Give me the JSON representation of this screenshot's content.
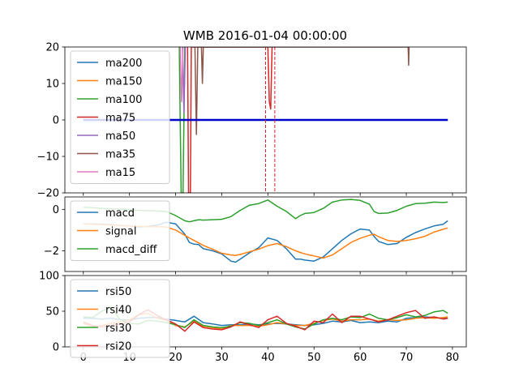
{
  "title": "WMB 2016-01-04 00:00:00",
  "chart_data": [
    {
      "type": "line",
      "panel": "ma",
      "xlim": [
        -4,
        83
      ],
      "ylim": [
        -20,
        20
      ],
      "xticks": [
        0,
        10,
        20,
        30,
        40,
        50,
        60,
        70,
        80
      ],
      "yticks": [
        20,
        10,
        0,
        -10,
        -20
      ],
      "legend_position": "top-left",
      "colors": {
        "ma200": "#1f77b4",
        "ma150": "#ff7f0e",
        "ma100": "#2ca02c",
        "ma75": "#d62728",
        "ma50": "#9467bd",
        "ma35": "#8c564b",
        "ma15": "#e377c2",
        "baseline": "#0000cc"
      },
      "baseline": {
        "x": [
          0,
          79
        ],
        "y": 0
      },
      "vlines": [
        39.5,
        41.5
      ],
      "series": [
        {
          "name": "ma200",
          "points": []
        },
        {
          "name": "ma150",
          "points": []
        },
        {
          "name": "ma100",
          "points": [
            [
              20.8,
              20
            ],
            [
              21.0,
              0
            ],
            [
              21.2,
              -20
            ],
            [
              21.6,
              -20
            ],
            [
              21.8,
              0
            ],
            [
              22.0,
              20
            ]
          ]
        },
        {
          "name": "ma75",
          "points": [
            [
              22.6,
              20
            ],
            [
              22.8,
              -20
            ],
            [
              23.2,
              -20
            ],
            [
              23.4,
              20
            ],
            [
              40.0,
              20
            ],
            [
              40.3,
              5
            ],
            [
              40.6,
              3
            ],
            [
              40.9,
              20
            ]
          ]
        },
        {
          "name": "ma50",
          "points": [
            [
              21.5,
              20
            ],
            [
              21.8,
              2
            ],
            [
              22.1,
              20
            ]
          ]
        },
        {
          "name": "ma35",
          "points": [
            [
              24.2,
              20
            ],
            [
              24.5,
              -4
            ],
            [
              24.8,
              20
            ],
            [
              25.6,
              20
            ],
            [
              25.8,
              10
            ],
            [
              26.0,
              20
            ],
            [
              70.4,
              20
            ],
            [
              70.5,
              15
            ],
            [
              70.6,
              20
            ]
          ]
        },
        {
          "name": "ma15",
          "points": [
            [
              21.0,
              20
            ],
            [
              21.3,
              5
            ],
            [
              21.6,
              20
            ]
          ]
        }
      ]
    },
    {
      "type": "line",
      "panel": "macd",
      "xlim": [
        -4,
        83
      ],
      "ylim": [
        -3.0,
        0.6
      ],
      "xticks": [
        0,
        10,
        20,
        30,
        40,
        50,
        60,
        70,
        80
      ],
      "yticks": [
        0,
        -2
      ],
      "legend_position": "top-left",
      "colors": {
        "macd": "#1f77b4",
        "signal": "#ff7f0e",
        "macd_diff": "#2ca02c"
      },
      "x": [
        0,
        2,
        4,
        6,
        8,
        10,
        12,
        14,
        16,
        18,
        20,
        22,
        23,
        24,
        25,
        26,
        28,
        30,
        32,
        33,
        34,
        36,
        38,
        40,
        42,
        44,
        46,
        47,
        48,
        50,
        52,
        54,
        56,
        58,
        60,
        62,
        63,
        64,
        66,
        68,
        70,
        72,
        74,
        76,
        78,
        79
      ],
      "series": [
        {
          "name": "macd",
          "values": [
            -0.7,
            -0.7,
            -0.72,
            -0.74,
            -0.78,
            -0.8,
            -0.85,
            -0.82,
            -0.76,
            -0.62,
            -0.7,
            -1.2,
            -1.6,
            -1.68,
            -1.7,
            -1.9,
            -2.0,
            -2.15,
            -2.5,
            -2.55,
            -2.4,
            -2.1,
            -1.85,
            -1.38,
            -1.5,
            -1.9,
            -2.4,
            -2.4,
            -2.45,
            -2.5,
            -2.3,
            -1.9,
            -1.5,
            -1.18,
            -0.95,
            -1.0,
            -1.3,
            -1.55,
            -1.7,
            -1.65,
            -1.35,
            -1.12,
            -0.95,
            -0.8,
            -0.72,
            -0.55
          ]
        },
        {
          "name": "signal",
          "values": [
            -0.7,
            -0.72,
            -0.74,
            -0.76,
            -0.78,
            -0.8,
            -0.82,
            -0.84,
            -0.84,
            -0.85,
            -1.0,
            -1.25,
            -1.38,
            -1.5,
            -1.62,
            -1.74,
            -1.92,
            -2.12,
            -2.2,
            -2.22,
            -2.18,
            -2.05,
            -1.92,
            -1.75,
            -1.65,
            -1.8,
            -2.0,
            -2.08,
            -2.15,
            -2.25,
            -2.35,
            -2.2,
            -1.9,
            -1.6,
            -1.4,
            -1.25,
            -1.2,
            -1.32,
            -1.5,
            -1.55,
            -1.5,
            -1.42,
            -1.3,
            -1.1,
            -0.96,
            -0.9
          ]
        },
        {
          "name": "macd_diff",
          "values": [
            0.1,
            0.08,
            0.05,
            0.02,
            0.0,
            -0.02,
            -0.05,
            -0.06,
            -0.08,
            -0.1,
            -0.3,
            -0.55,
            -0.6,
            -0.55,
            -0.5,
            -0.52,
            -0.5,
            -0.48,
            -0.35,
            -0.2,
            -0.05,
            0.2,
            0.28,
            0.45,
            0.15,
            -0.1,
            -0.45,
            -0.3,
            -0.2,
            -0.15,
            0.05,
            0.35,
            0.45,
            0.48,
            0.43,
            0.25,
            -0.1,
            -0.2,
            -0.18,
            -0.05,
            0.15,
            0.28,
            0.3,
            0.35,
            0.33,
            0.35
          ]
        }
      ]
    },
    {
      "type": "line",
      "panel": "rsi",
      "xlim": [
        -4,
        83
      ],
      "ylim": [
        0,
        100
      ],
      "xticks": [
        0,
        10,
        20,
        30,
        40,
        50,
        60,
        70,
        80
      ],
      "yticks": [
        100,
        50,
        0
      ],
      "legend_position": "top-left",
      "colors": {
        "rsi50": "#1f77b4",
        "rsi40": "#ff7f0e",
        "rsi30": "#2ca02c",
        "rsi20": "#d62728"
      },
      "x": [
        0,
        2,
        4,
        6,
        8,
        10,
        12,
        14,
        16,
        18,
        20,
        22,
        24,
        26,
        28,
        30,
        32,
        34,
        36,
        38,
        40,
        42,
        44,
        46,
        48,
        50,
        52,
        54,
        56,
        58,
        60,
        62,
        64,
        66,
        68,
        70,
        72,
        74,
        76,
        78,
        79
      ],
      "series": [
        {
          "name": "rsi50",
          "values": [
            40,
            40,
            39,
            40,
            38,
            38,
            40,
            41,
            41,
            39,
            37,
            35,
            43,
            34,
            32,
            30,
            31,
            31,
            32,
            31,
            32,
            33,
            32,
            31,
            30,
            31,
            33,
            36,
            35,
            37,
            34,
            35,
            34,
            36,
            35,
            40,
            41,
            42,
            41,
            40,
            40
          ]
        },
        {
          "name": "rsi40",
          "values": [
            33,
            28,
            30,
            33,
            35,
            38,
            45,
            47,
            40,
            37,
            30,
            28,
            36,
            29,
            27,
            25,
            30,
            30,
            30,
            29,
            31,
            34,
            32,
            30,
            30,
            33,
            37,
            39,
            36,
            38,
            38,
            39,
            36,
            38,
            37,
            38,
            40,
            41,
            40,
            41,
            42
          ]
        },
        {
          "name": "rsi30",
          "values": [
            42,
            41,
            50,
            56,
            38,
            33,
            32,
            37,
            36,
            34,
            31,
            27,
            38,
            30,
            28,
            27,
            29,
            34,
            33,
            30,
            34,
            38,
            32,
            28,
            25,
            32,
            38,
            40,
            38,
            42,
            41,
            46,
            40,
            38,
            41,
            45,
            42,
            44,
            49,
            51,
            47
          ]
        },
        {
          "name": "rsi20",
          "values": [
            35,
            30,
            28,
            30,
            32,
            35,
            45,
            52,
            44,
            38,
            32,
            22,
            35,
            27,
            25,
            24,
            28,
            35,
            31,
            27,
            38,
            43,
            33,
            29,
            24,
            36,
            34,
            46,
            34,
            43,
            43,
            39,
            35,
            38,
            43,
            48,
            51,
            40,
            42,
            39,
            40
          ]
        }
      ]
    }
  ]
}
